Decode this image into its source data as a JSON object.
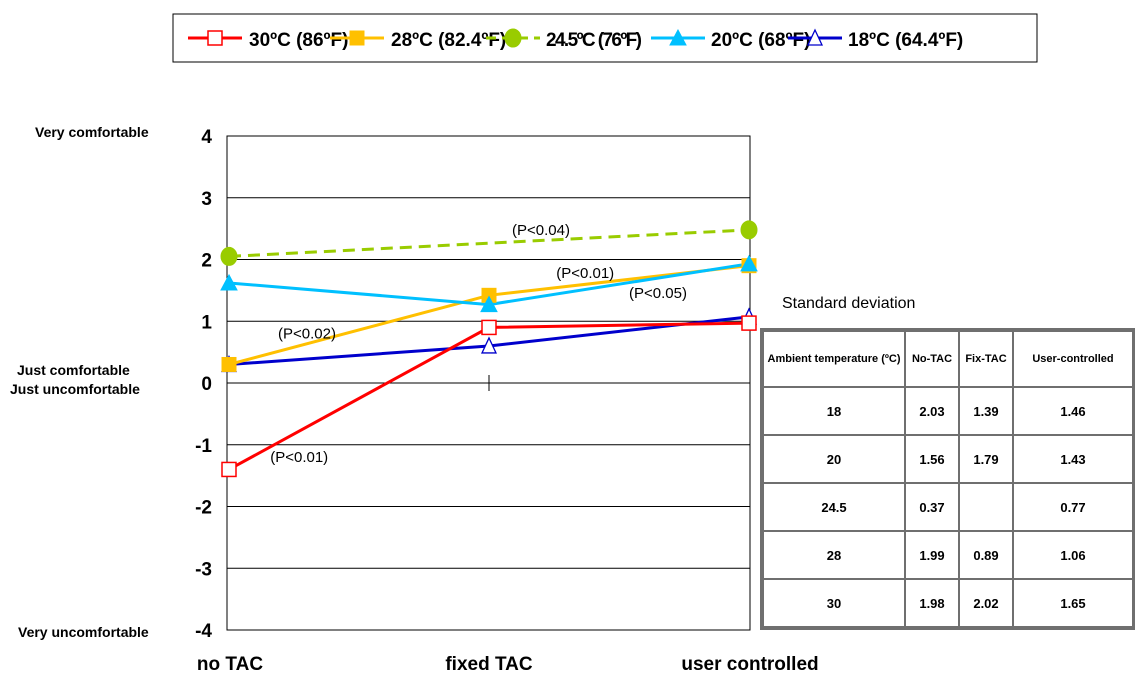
{
  "chart_data": {
    "type": "line",
    "categories": [
      "no TAC",
      "fixed TAC",
      "user controlled"
    ],
    "ylim": [
      -4,
      4
    ],
    "yticks": [
      -4,
      -3,
      -2,
      -1,
      0,
      1,
      2,
      3,
      4
    ],
    "grid": "horizontal",
    "legend_position": "top",
    "series": [
      {
        "name": "30ºC (86ºF)",
        "values": [
          -1.4,
          0.9,
          0.97
        ],
        "color": "#ff0000",
        "marker": "square-open",
        "dash": "solid"
      },
      {
        "name": "28ºC (82.4ºF)",
        "values": [
          0.3,
          1.42,
          1.9
        ],
        "color": "#ffc000",
        "marker": "square-filled",
        "dash": "solid"
      },
      {
        "name": "24.5ºC (76ºF)",
        "values": [
          2.05,
          null,
          2.48
        ],
        "color": "#99cc00",
        "marker": "circle-filled",
        "dash": "dashed"
      },
      {
        "name": "20ºC (68ºF)",
        "values": [
          1.62,
          1.27,
          1.93
        ],
        "color": "#00c0ff",
        "marker": "triangle-filled",
        "dash": "solid"
      },
      {
        "name": "18ºC (64.4ºF)",
        "values": [
          0.3,
          0.6,
          1.07
        ],
        "color": "#0000cc",
        "marker": "triangle-open",
        "dash": "solid"
      }
    ],
    "y_category_labels": [
      {
        "text": "Very comfortable",
        "y": 4
      },
      {
        "text": "Just comfortable",
        "y": 0.17
      },
      {
        "text": "Just uncomfortable",
        "y": -0.15
      },
      {
        "text": "Very uncomfortable",
        "y": -4
      }
    ],
    "annotations": [
      {
        "text": "(P<0.04)",
        "x": 1.2,
        "y": 2.4
      },
      {
        "text": "(P<0.01)",
        "x": 1.37,
        "y": 1.7
      },
      {
        "text": "(P<0.05)",
        "x": 1.65,
        "y": 1.38
      },
      {
        "text": "(P<0.02)",
        "x": 0.3,
        "y": 0.72
      },
      {
        "text": "(P<0.01)",
        "x": 0.27,
        "y": -1.28
      }
    ]
  },
  "table": {
    "title": "Standard deviation",
    "headers": [
      "Ambient temperature (ºC)",
      "No-TAC",
      "Fix-TAC",
      "User-controlled"
    ],
    "rows": [
      [
        "18",
        "2.03",
        "1.39",
        "1.46"
      ],
      [
        "20",
        "1.56",
        "1.79",
        "1.43"
      ],
      [
        "24.5",
        "0.37",
        "",
        "0.77"
      ],
      [
        "28",
        "1.99",
        "0.89",
        "1.06"
      ],
      [
        "30",
        "1.98",
        "2.02",
        "1.65"
      ]
    ]
  }
}
